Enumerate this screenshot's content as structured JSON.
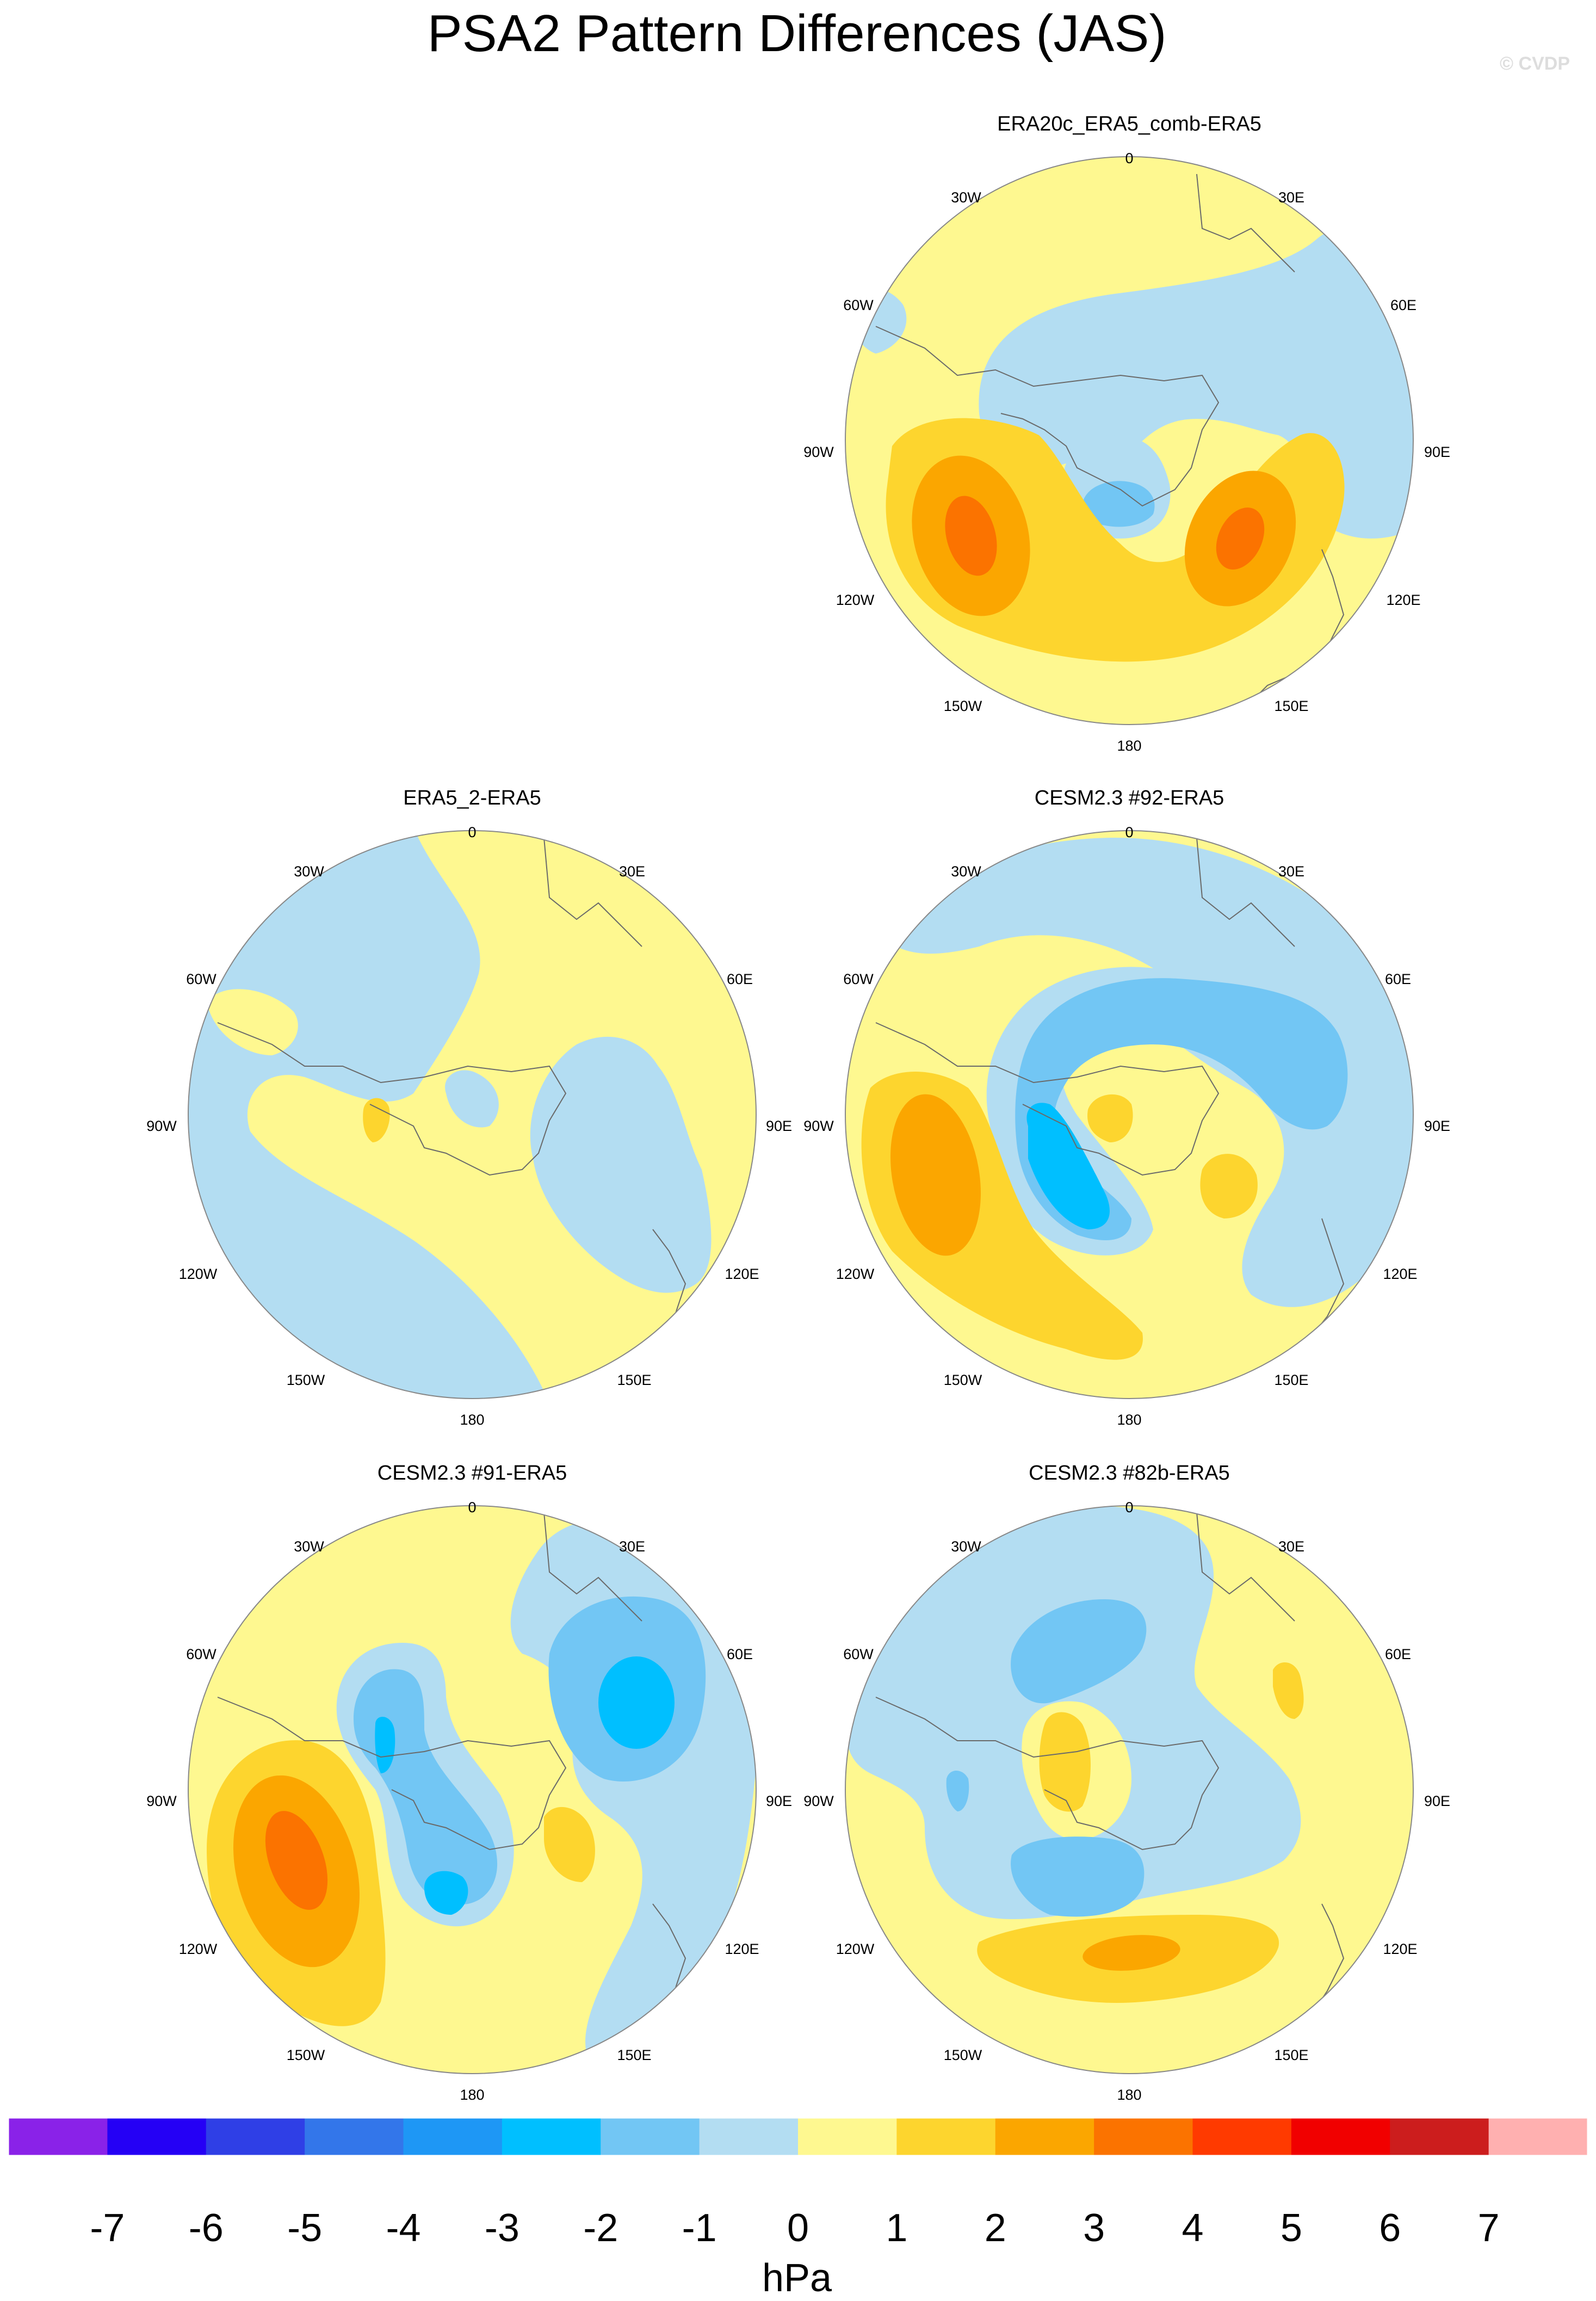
{
  "figure": {
    "title": "PSA2 Pattern Differences (JAS)",
    "watermark": "© CVDP"
  },
  "colors": {
    "ocean_edge": "#888888",
    "coast": "#6a6a6a"
  },
  "chart_data": [
    {
      "type": "map",
      "panel": "top-right",
      "title": "ERA20c_ERA5_comb-ERA5",
      "projection": "south polar stereographic",
      "lon_labels": [
        "0",
        "30E",
        "60E",
        "90E",
        "120E",
        "150E",
        "180",
        "150W",
        "120W",
        "90W",
        "60W",
        "30W"
      ],
      "features": [
        {
          "kind": "high",
          "level_max": 3,
          "lon": "110W"
        },
        {
          "kind": "high",
          "level_max": 3,
          "lon": "110E"
        },
        {
          "kind": "low",
          "level_min": -2,
          "lon": "pole"
        }
      ]
    },
    {
      "type": "map",
      "panel": "middle-left",
      "title": "ERA5_2-ERA5",
      "projection": "south polar stereographic",
      "lon_labels": [
        "0",
        "30E",
        "60E",
        "90E",
        "120E",
        "150E",
        "180",
        "150W",
        "120W",
        "90W",
        "60W",
        "30W"
      ],
      "features": [
        {
          "kind": "low",
          "level_min": -1,
          "lon": "120W"
        },
        {
          "kind": "low",
          "level_min": -1,
          "lon": "90E"
        },
        {
          "kind": "high",
          "level_max": 1,
          "lon": "90W"
        }
      ]
    },
    {
      "type": "map",
      "panel": "middle-right",
      "title": "CESM2.3 #92-ERA5",
      "projection": "south polar stereographic",
      "lon_labels": [
        "0",
        "30E",
        "60E",
        "90E",
        "120E",
        "150E",
        "180",
        "150W",
        "120W",
        "90W",
        "60W",
        "30W"
      ],
      "features": [
        {
          "kind": "high",
          "level_max": 2,
          "lon": "110W"
        },
        {
          "kind": "low",
          "level_min": -3,
          "lon": "135W"
        },
        {
          "kind": "low",
          "level_min": -2,
          "lon": "60E"
        }
      ]
    },
    {
      "type": "map",
      "panel": "bottom-left",
      "title": "CESM2.3 #91-ERA5",
      "projection": "south polar stereographic",
      "lon_labels": [
        "0",
        "30E",
        "60E",
        "90E",
        "120E",
        "150E",
        "180",
        "150W",
        "120W",
        "90W",
        "60W",
        "30W"
      ],
      "features": [
        {
          "kind": "high",
          "level_max": 3,
          "lon": "100W"
        },
        {
          "kind": "low",
          "level_min": -3,
          "lon": "60E"
        },
        {
          "kind": "low",
          "level_min": -3,
          "lon": "160W"
        }
      ]
    },
    {
      "type": "map",
      "panel": "bottom-right",
      "title": "CESM2.3 #82b-ERA5",
      "projection": "south polar stereographic",
      "lon_labels": [
        "0",
        "30E",
        "60E",
        "90E",
        "120E",
        "150E",
        "180",
        "150W",
        "120W",
        "90W",
        "60W",
        "30W"
      ],
      "features": [
        {
          "kind": "low",
          "level_min": -2,
          "lon": "30W"
        },
        {
          "kind": "high",
          "level_max": 2,
          "lon": "170E"
        },
        {
          "kind": "low",
          "level_min": -2,
          "lon": "120W"
        }
      ]
    }
  ],
  "colorbar": {
    "unit": "hPa",
    "tick_labels": [
      "-7",
      "-6",
      "-5",
      "-4",
      "-3",
      "-2",
      "-1",
      "0",
      "1",
      "2",
      "3",
      "4",
      "5",
      "6",
      "7"
    ],
    "colors": [
      "#8a22e8",
      "#2500f5",
      "#2f3fe6",
      "#3376ea",
      "#1e97f5",
      "#00bfff",
      "#72c6f4",
      "#b3ddf2",
      "#fef890",
      "#fdd52e",
      "#fba600",
      "#fb7300",
      "#ff3a00",
      "#f10000",
      "#cc1d1d",
      "#ffb0b0"
    ]
  }
}
